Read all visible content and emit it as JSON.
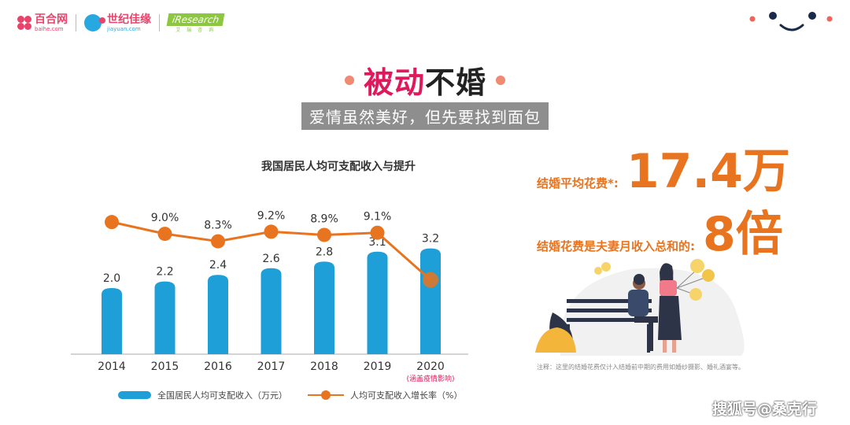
{
  "header": {
    "baihe": {
      "cn": "百合网",
      "en": "baihe.com"
    },
    "jiayuan": {
      "cn": "世纪佳缘",
      "en": "jiayuan.com"
    },
    "iresearch": {
      "en": "iResearch",
      "cn": "艾 瑞 咨 询"
    }
  },
  "title": {
    "accent": "被动",
    "rest": "不婚"
  },
  "subtitle": "爱情虽然美好，但先要找到面包",
  "chart_data": {
    "type": "bar+line",
    "title": "我国居民人均可支配收入与提升",
    "categories": [
      "2014",
      "2015",
      "2016",
      "2017",
      "2018",
      "2019",
      "2020"
    ],
    "category_note": "(涵盖疫情影响)",
    "series": [
      {
        "name": "全国居民人均可支配收入（万元）",
        "type": "bar",
        "values": [
          2.0,
          2.2,
          2.4,
          2.6,
          2.8,
          3.1,
          3.2
        ],
        "labels": [
          "2.0",
          "2.2",
          "2.4",
          "2.6",
          "2.8",
          "3.1",
          "3.2"
        ],
        "color": "#1e9fd8"
      },
      {
        "name": "人均可支配收入增长率（%）",
        "type": "line",
        "values": [
          10.1,
          9.0,
          8.3,
          9.2,
          8.9,
          9.1,
          4.7
        ],
        "labels": [
          "",
          "9.0%",
          "8.3%",
          "9.2%",
          "8.9%",
          "9.1%",
          ""
        ],
        "color": "#e9741f"
      }
    ],
    "legend_position": "bottom",
    "grid": false
  },
  "stats": {
    "cost_label": "结婚平均花费*:",
    "cost_value": "17.4万",
    "ratio_label": "结婚花费是夫妻月收入总和的:",
    "ratio_value": "8倍"
  },
  "note": "注释：这里的结婚花费仅计入结婚前中期的费用如婚纱摄影、婚礼酒宴等。",
  "watermark": "搜狐号@桑克行",
  "colors": {
    "accent_pink": "#e0195c",
    "orange": "#e9741f",
    "blue": "#1e9fd8"
  }
}
